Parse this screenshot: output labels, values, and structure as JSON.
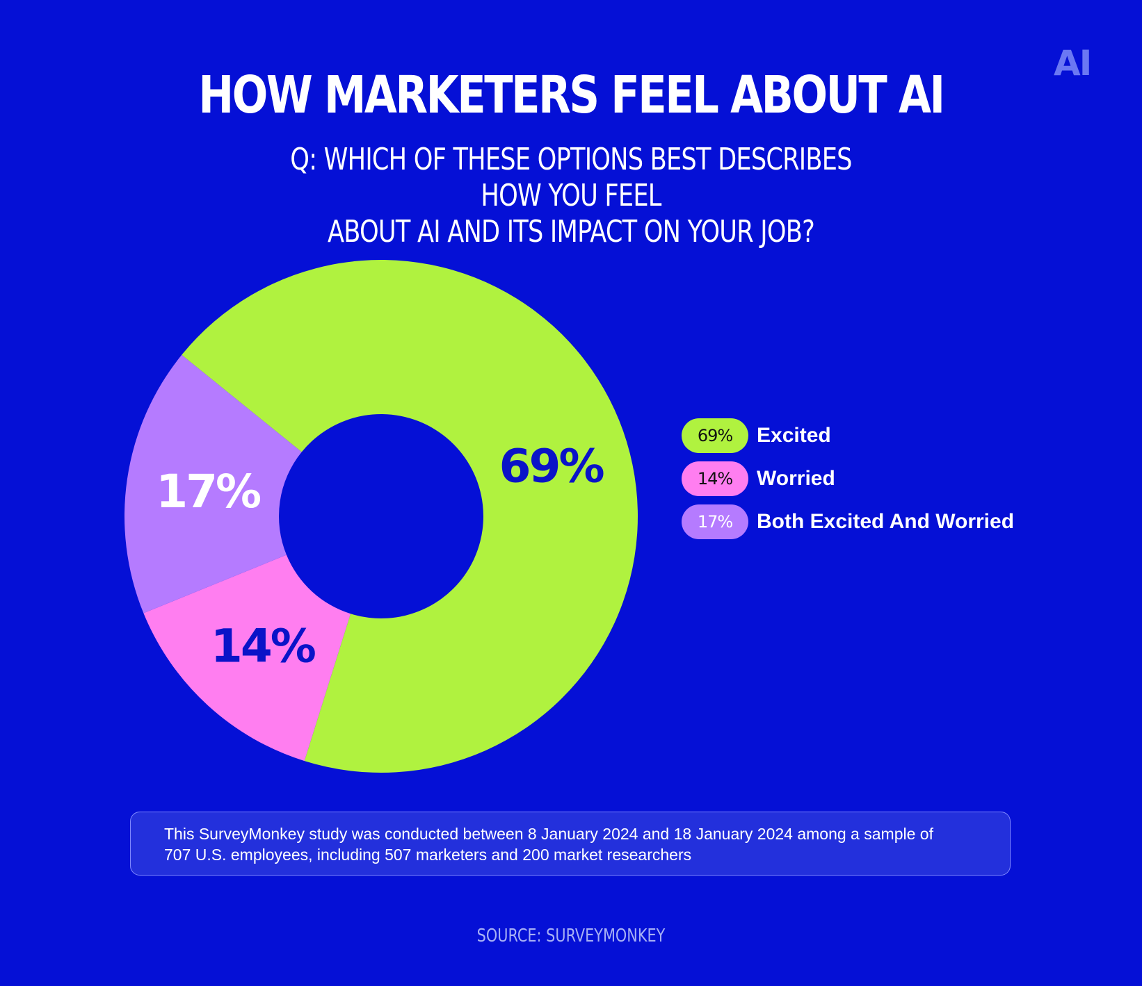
{
  "brand": {
    "logo_text": "AI"
  },
  "colors": {
    "background": "#0510d6",
    "excited": "#b0f23f",
    "worried": "#ff7ef0",
    "both": "#b57bff",
    "dark_text": "#0a13c8"
  },
  "footnote": {
    "line1": "This SurveyMonkey study was conducted between 8 January 2024 and 18 January 2024 among a sample of",
    "line2": "707 U.S. employees, including 507 marketers and 200 market researchers"
  },
  "source": "SOURCE: SURVEYMONKEY",
  "chart_data": {
    "type": "pie",
    "donut": true,
    "title": "HOW MARKETERS FEEL ABOUT AI",
    "subtitle_line1": "Q: WHICH OF THESE OPTIONS BEST DESCRIBES HOW YOU FEEL",
    "subtitle_line2": "ABOUT AI AND ITS IMPACT ON YOUR JOB?",
    "legend_position": "right",
    "categories": [
      "Excited",
      "Worried",
      "Both Excited And Worried"
    ],
    "values": [
      69,
      14,
      17
    ],
    "value_labels": [
      "69%",
      "14%",
      "17%"
    ],
    "slice_colors": [
      "#b0f23f",
      "#ff7ef0",
      "#b57bff"
    ],
    "label_colors": [
      "#0a13c8",
      "#0a13c8",
      "#ffffff"
    ],
    "legend_text_colors": [
      "#111111",
      "#111111",
      "#ffffff"
    ]
  }
}
